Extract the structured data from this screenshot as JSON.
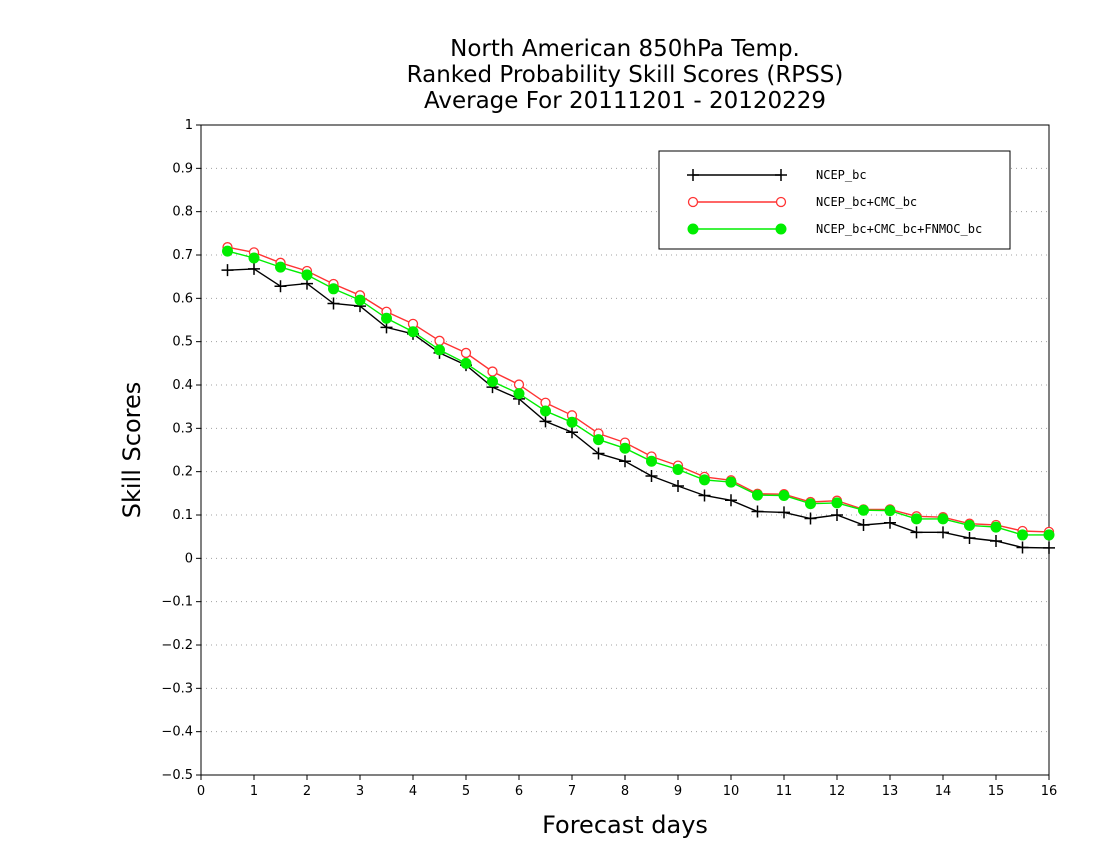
{
  "chart_data": {
    "type": "line",
    "title": [
      "North American 850hPa Temp.",
      "Ranked Probability Skill Scores (RPSS)",
      "Average For 20111201 - 20120229"
    ],
    "xlabel": "Forecast days",
    "ylabel": "Skill Scores",
    "xlim": [
      0,
      16
    ],
    "ylim": [
      -0.5,
      1
    ],
    "xticks": [
      0,
      1,
      2,
      3,
      4,
      5,
      6,
      7,
      8,
      9,
      10,
      11,
      12,
      13,
      14,
      15,
      16
    ],
    "xtick_labels": [
      "0",
      "1",
      "2",
      "3",
      "4",
      "5",
      "6",
      "7",
      "8",
      "9",
      "10",
      "11",
      "12",
      "13",
      "14",
      "15",
      "16"
    ],
    "yticks": [
      -0.5,
      -0.4,
      -0.3,
      -0.2,
      -0.1,
      0,
      0.1,
      0.2,
      0.3,
      0.4,
      0.5,
      0.6,
      0.7,
      0.8,
      0.9,
      1
    ],
    "ytick_labels": [
      "−0.5",
      "−0.4",
      "−0.3",
      "−0.2",
      "−0.1",
      "0",
      "0.1",
      "0.2",
      "0.3",
      "0.4",
      "0.5",
      "0.6",
      "0.7",
      "0.8",
      "0.9",
      "1"
    ],
    "grid": "horizontal dotted",
    "legend_position": "top-right",
    "x": [
      0.5,
      1,
      1.5,
      2,
      2.5,
      3,
      3.5,
      4,
      4.5,
      5,
      5.5,
      6,
      6.5,
      7,
      7.5,
      8,
      8.5,
      9,
      9.5,
      10,
      10.5,
      11,
      11.5,
      12,
      12.5,
      13,
      13.5,
      14,
      14.5,
      15,
      15.5,
      16
    ],
    "series": [
      {
        "name": "NCEP_bc",
        "color": "#000000",
        "marker": "plus",
        "values": [
          0.665,
          0.668,
          0.628,
          0.634,
          0.588,
          0.582,
          0.533,
          0.518,
          0.474,
          0.446,
          0.395,
          0.368,
          0.316,
          0.291,
          0.242,
          0.224,
          0.19,
          0.167,
          0.145,
          0.134,
          0.108,
          0.106,
          0.092,
          0.1,
          0.077,
          0.082,
          0.06,
          0.06,
          0.047,
          0.04,
          0.025,
          0.024
        ]
      },
      {
        "name": "NCEP_bc+CMC_bc",
        "color": "#ff3333",
        "marker": "open-circle",
        "values": [
          0.718,
          0.706,
          0.682,
          0.663,
          0.633,
          0.607,
          0.569,
          0.541,
          0.502,
          0.474,
          0.431,
          0.401,
          0.359,
          0.33,
          0.288,
          0.267,
          0.235,
          0.214,
          0.188,
          0.18,
          0.149,
          0.148,
          0.13,
          0.133,
          0.113,
          0.113,
          0.097,
          0.095,
          0.08,
          0.077,
          0.063,
          0.061
        ]
      },
      {
        "name": "NCEP_bc+CMC_bc+FNMOC_bc",
        "color": "#00ee00",
        "marker": "filled-circle",
        "values": [
          0.709,
          0.693,
          0.672,
          0.654,
          0.622,
          0.596,
          0.554,
          0.523,
          0.481,
          0.45,
          0.408,
          0.38,
          0.34,
          0.314,
          0.274,
          0.254,
          0.224,
          0.205,
          0.181,
          0.176,
          0.146,
          0.145,
          0.126,
          0.128,
          0.111,
          0.11,
          0.091,
          0.091,
          0.076,
          0.072,
          0.054,
          0.054
        ]
      }
    ]
  }
}
